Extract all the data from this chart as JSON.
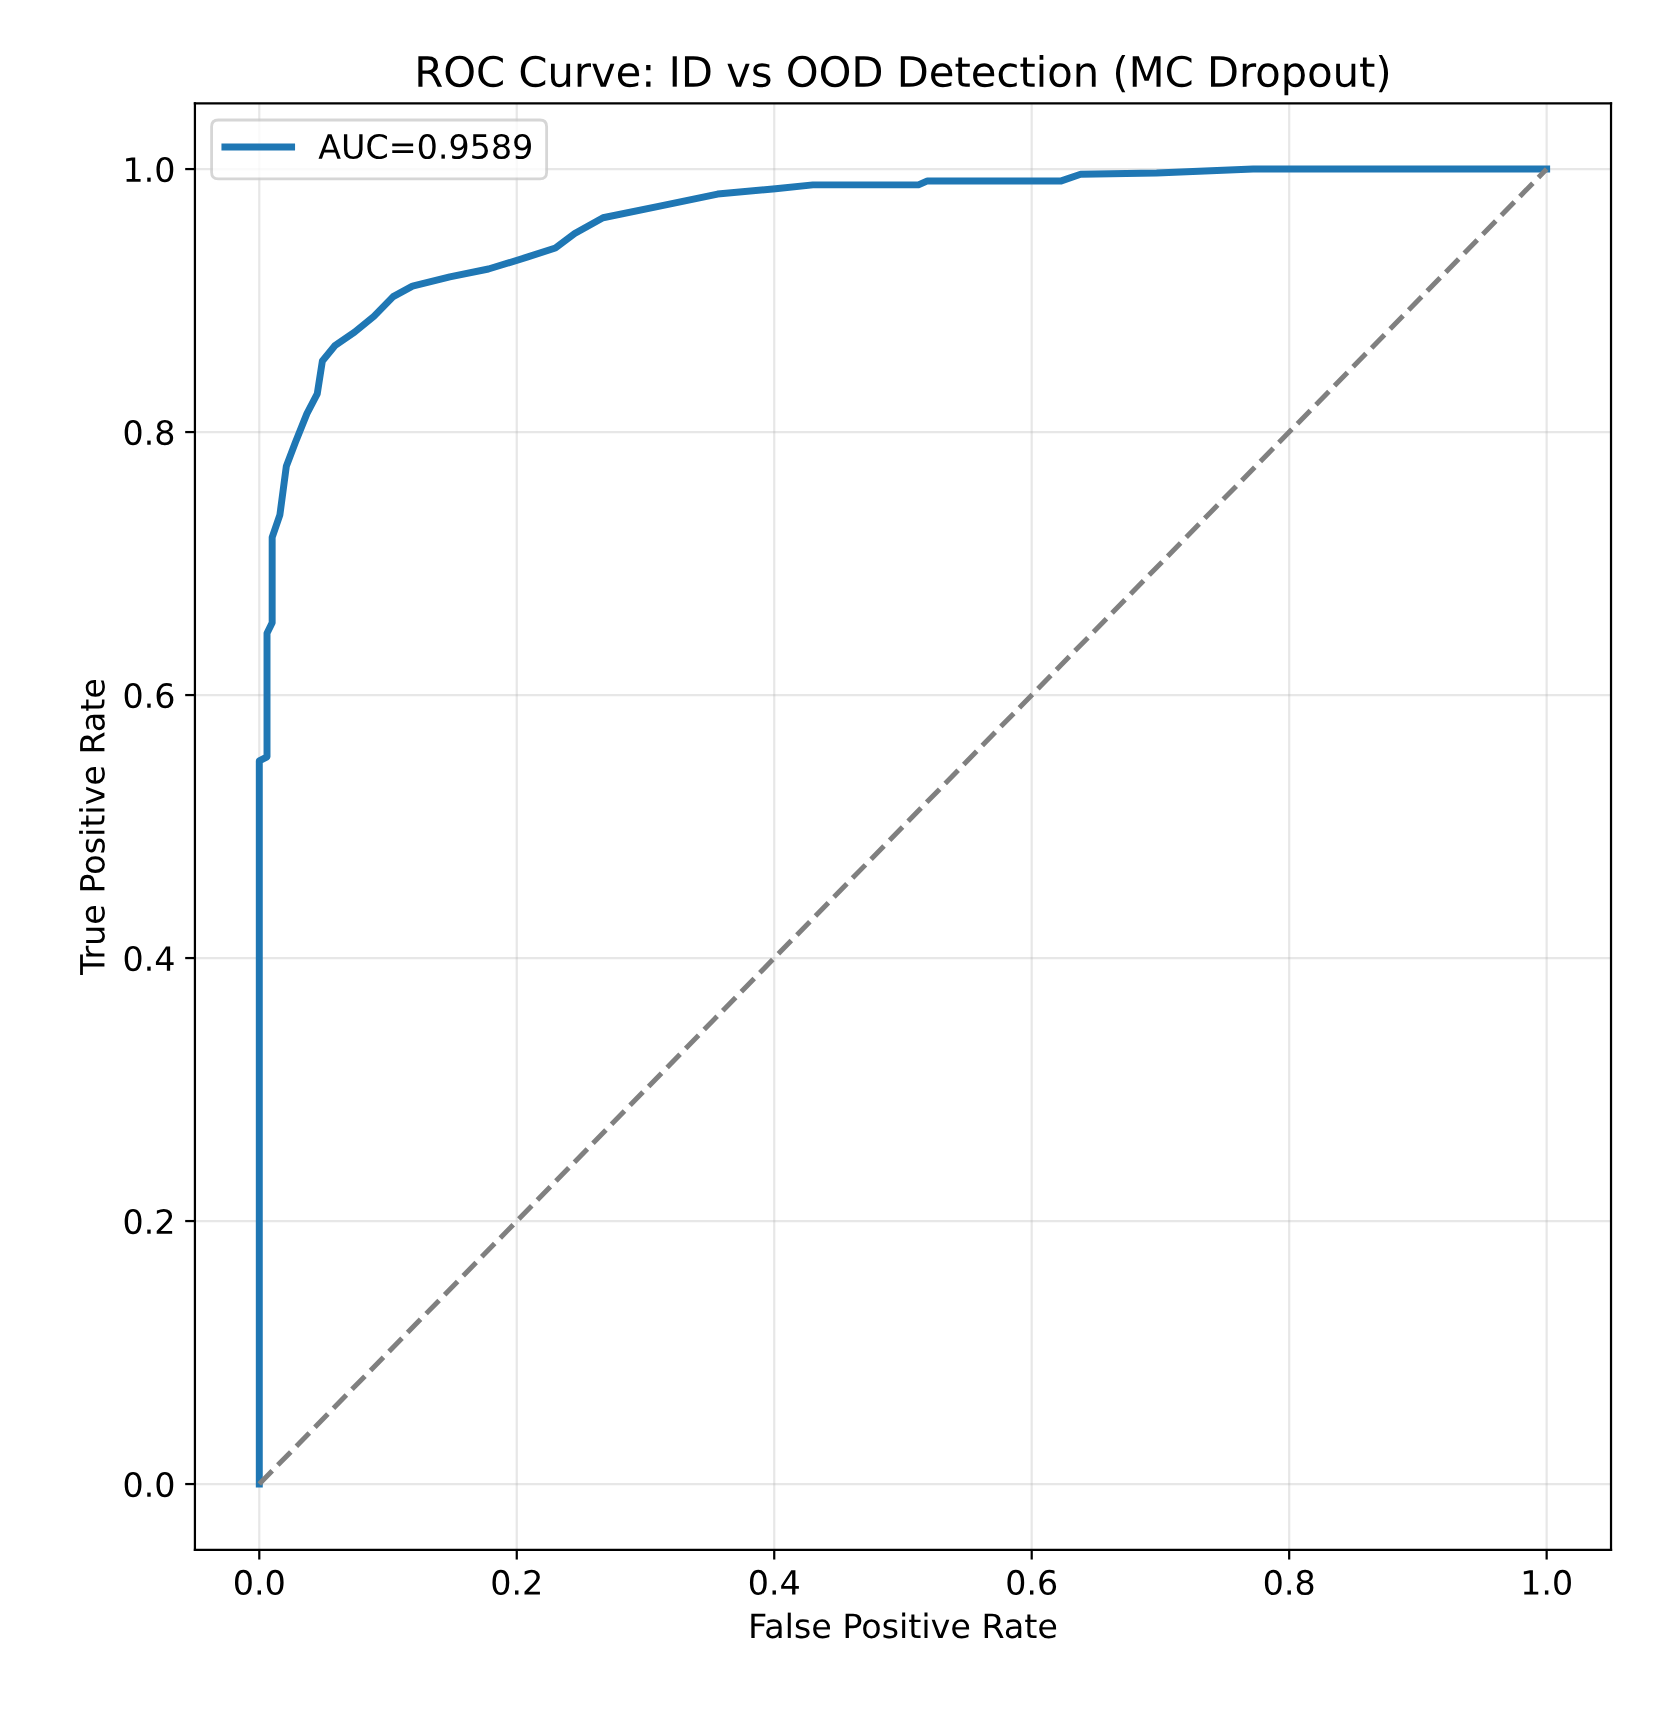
{
  "chart_data": {
    "type": "line",
    "title": "ROC Curve: ID vs OOD Detection (MC Dropout)",
    "xlabel": "False Positive Rate",
    "ylabel": "True Positive Rate",
    "series": [
      {
        "name": "AUC=0.9589",
        "color": "#1f77b4",
        "line_style": "solid",
        "x": [
          0,
          0,
          0.006,
          0.006,
          0.01,
          0.01,
          0.016,
          0.021,
          0.028,
          0.037,
          0.045,
          0.049,
          0.059,
          0.074,
          0.089,
          0.104,
          0.119,
          0.148,
          0.178,
          0.208,
          0.23,
          0.245,
          0.267,
          0.312,
          0.356,
          0.401,
          0.43,
          0.512,
          0.519,
          0.623,
          0.638,
          0.697,
          0.772,
          1.0
        ],
        "values": [
          0,
          0.55,
          0.553,
          0.647,
          0.655,
          0.72,
          0.737,
          0.774,
          0.792,
          0.814,
          0.829,
          0.854,
          0.866,
          0.876,
          0.888,
          0.903,
          0.911,
          0.918,
          0.924,
          0.933,
          0.94,
          0.951,
          0.963,
          0.972,
          0.981,
          0.985,
          0.988,
          0.988,
          0.991,
          0.991,
          0.996,
          0.997,
          1.0,
          1.0
        ]
      },
      {
        "color": "#808080",
        "line_style": "dashed",
        "x": [
          0,
          1
        ],
        "values": [
          0,
          1
        ]
      }
    ],
    "xlim": [
      -0.05,
      1.05
    ],
    "ylim": [
      -0.05,
      1.05
    ],
    "xticks": [
      {
        "value": 0,
        "label": "0.0"
      },
      0.2,
      0.4,
      0.6,
      0.8,
      {
        "value": 1,
        "label": "1.0"
      }
    ],
    "yticks": [
      {
        "value": 0,
        "label": "0.0"
      },
      0.2,
      0.4,
      0.6,
      0.8,
      {
        "value": 1,
        "label": "1.0"
      }
    ],
    "grid": true,
    "legend": "top left"
  }
}
